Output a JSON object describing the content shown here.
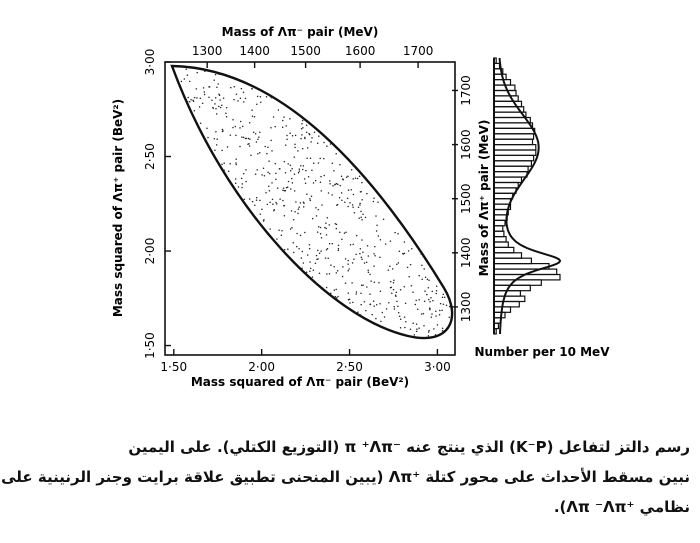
{
  "chart_data": [
    {
      "type": "scatter",
      "x_label_bottom": "Mass squared of Λπ⁻ pair (BeV²)",
      "x_label_top": "Mass of Λπ⁻ pair (MeV)",
      "y_label_left": "Mass squared of Λπ⁺ pair (BeV²)",
      "bottom_ticks": [
        "1·50",
        "2·00",
        "2·50",
        "3·00"
      ],
      "bottom_tick_values": [
        1.5,
        2.0,
        2.5,
        3.0
      ],
      "top_ticks": [
        "1300",
        "1400",
        "1500",
        "1600",
        "1700"
      ],
      "top_tick_values": [
        1300,
        1400,
        1500,
        1600,
        1700
      ],
      "left_ticks": [
        "3·00",
        "2·50",
        "2·00",
        "1·50"
      ],
      "left_tick_values": [
        3.0,
        2.5,
        2.0,
        1.5
      ],
      "xlim": [
        1.45,
        3.1
      ],
      "ylim": [
        1.45,
        3.0
      ],
      "boundary": "closed kinematic (Dalitz) boundary, elongated from upper-left to lower-right",
      "points": "a few hundred events scattered densely inside the boundary"
    },
    {
      "type": "histogram",
      "orientation": "horizontal",
      "y_label_right": "Mass of Λπ⁺ pair (MeV)",
      "x_label_bottom": "Number per 10 MeV",
      "right_ticks": [
        "1700",
        "1600",
        "1500",
        "1400",
        "1300"
      ],
      "right_tick_values": [
        1700,
        1600,
        1500,
        1400,
        1300
      ],
      "ylim": [
        1250,
        1760
      ],
      "bins_mev": [
        1250,
        1260,
        1270,
        1280,
        1290,
        1300,
        1310,
        1320,
        1330,
        1340,
        1350,
        1360,
        1370,
        1380,
        1390,
        1400,
        1410,
        1420,
        1430,
        1440,
        1450,
        1460,
        1470,
        1480,
        1490,
        1500,
        1510,
        1520,
        1530,
        1540,
        1550,
        1560,
        1570,
        1580,
        1590,
        1600,
        1610,
        1620,
        1630,
        1640,
        1650,
        1660,
        1670,
        1680,
        1690,
        1700,
        1710,
        1720,
        1730,
        1740,
        1750
      ],
      "counts": [
        2,
        4,
        6,
        10,
        15,
        23,
        28,
        24,
        33,
        43,
        60,
        57,
        50,
        34,
        25,
        18,
        13,
        11,
        9,
        8,
        10,
        12,
        13,
        15,
        15,
        17,
        20,
        22,
        25,
        30,
        31,
        34,
        36,
        38,
        38,
        35,
        36,
        37,
        35,
        33,
        29,
        27,
        25,
        22,
        20,
        19,
        15,
        11,
        8,
        5,
        2
      ],
      "fit": "Breit-Wigner resonance curve (peak near 1385 MeV) on a broad background"
    }
  ],
  "caption": {
    "lines": [
      "رسم دالتز لتفاعل (K⁻P) الذي ينتج عنه ⁻π ⁺Λπ (التوزيع الكتلي). على اليمين",
      "نبين مسقط الأحداث على محور كتلة ⁺Λπ (يبين المنحنى تطبيق علاقة برايت وجنر الرنينية على",
      "نظامي ⁺Λπ ⁻Λπ)."
    ]
  }
}
